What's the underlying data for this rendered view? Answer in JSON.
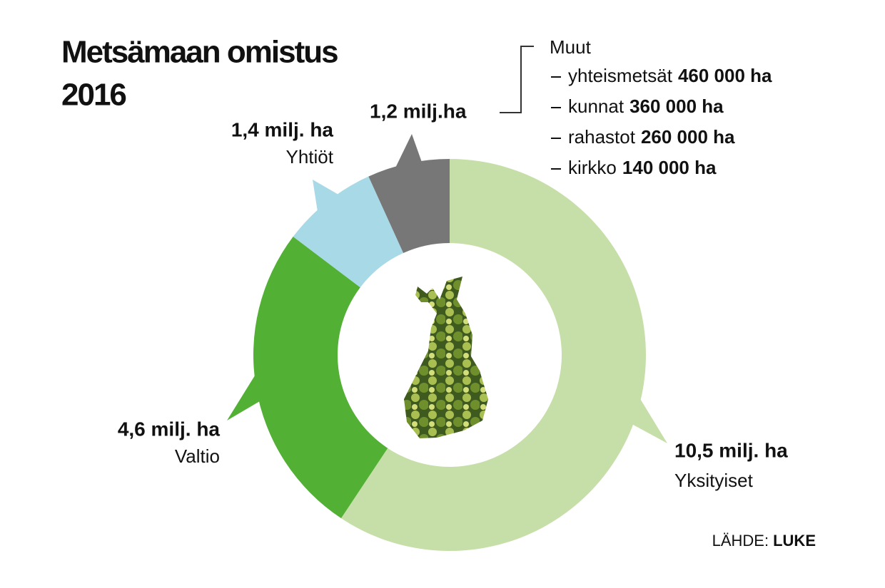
{
  "chart_data": {
    "type": "donut",
    "title_lines": [
      "Metsämaan omistus",
      "2016"
    ],
    "categories": [
      "Yksityiset",
      "Valtio",
      "Yhtiöt",
      "Muut"
    ],
    "values": [
      10.5,
      4.6,
      1.4,
      1.2
    ],
    "value_labels": [
      "10,5 milj. ha",
      "4,6 milj. ha",
      "1,4 milj. ha",
      "1,2 milj.ha"
    ],
    "colors": [
      "#c6dfa9",
      "#52b035",
      "#a8d9e7",
      "#777777"
    ],
    "breakdown": [
      {
        "name": "yhteismetsät",
        "value": 460000,
        "value_label": "460 000 ha"
      },
      {
        "name": "kunnat",
        "value": 360000,
        "value_label": "360 000 ha"
      },
      {
        "name": "rahastot",
        "value": 260000,
        "value_label": "260 000 ha"
      },
      {
        "name": "kirkko",
        "value": 140000,
        "value_label": "140 000 ha"
      }
    ],
    "source_label": "LÄHDE:",
    "source": "LUKE"
  }
}
